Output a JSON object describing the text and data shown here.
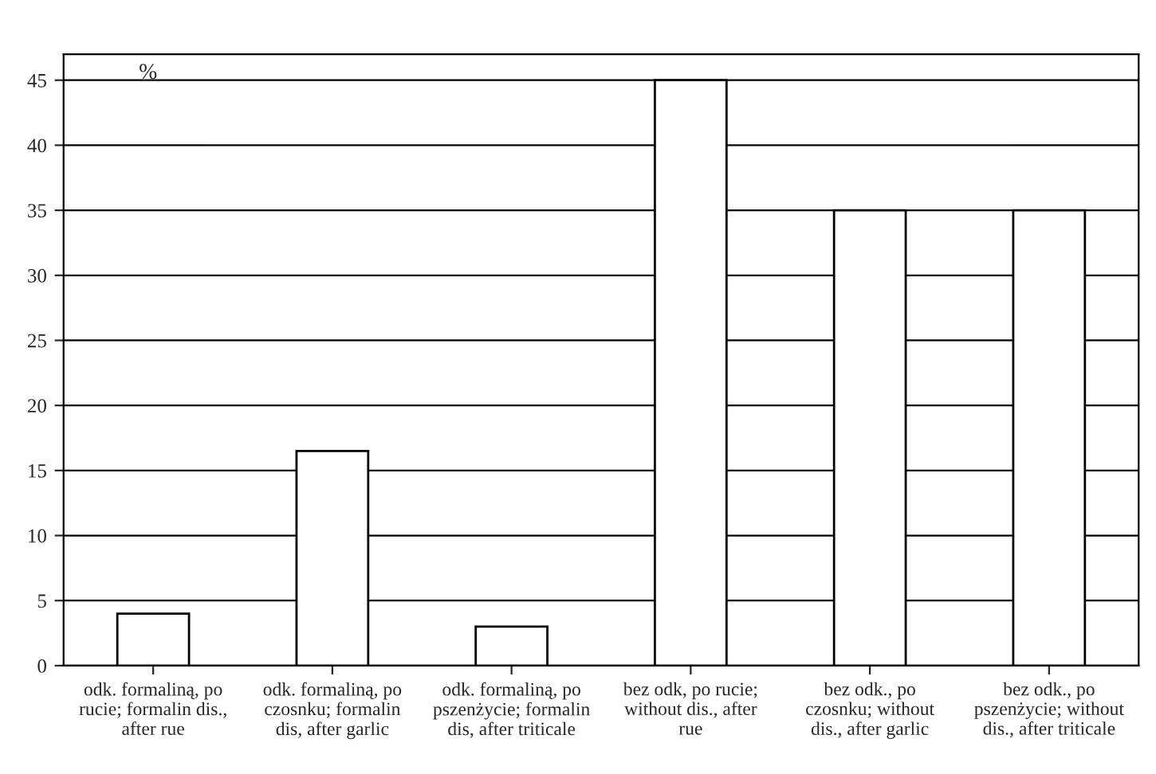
{
  "chart_data": {
    "type": "bar",
    "ylabel": "%",
    "categories": [
      "odk. formaliną, po\nrucie; formalin dis.,\nafter rue",
      "odk. formaliną, po\nczosnku; formalin\ndis, after garlic",
      "odk. formaliną, po\npszenżycie; formalin\ndis, after triticale",
      "bez odk, po rucie;\nwithout dis., after\nrue",
      "bez odk., po\nczosnku; without\ndis., after garlic",
      "bez odk., po\npszenżycie; without\ndis., after triticale"
    ],
    "values": [
      4,
      16.5,
      3,
      45,
      35,
      35
    ],
    "color": "#ffffff",
    "ylim": [
      0,
      47
    ],
    "yticks": [
      0,
      5,
      10,
      15,
      20,
      25,
      30,
      35,
      40,
      45
    ],
    "grid": "y"
  }
}
